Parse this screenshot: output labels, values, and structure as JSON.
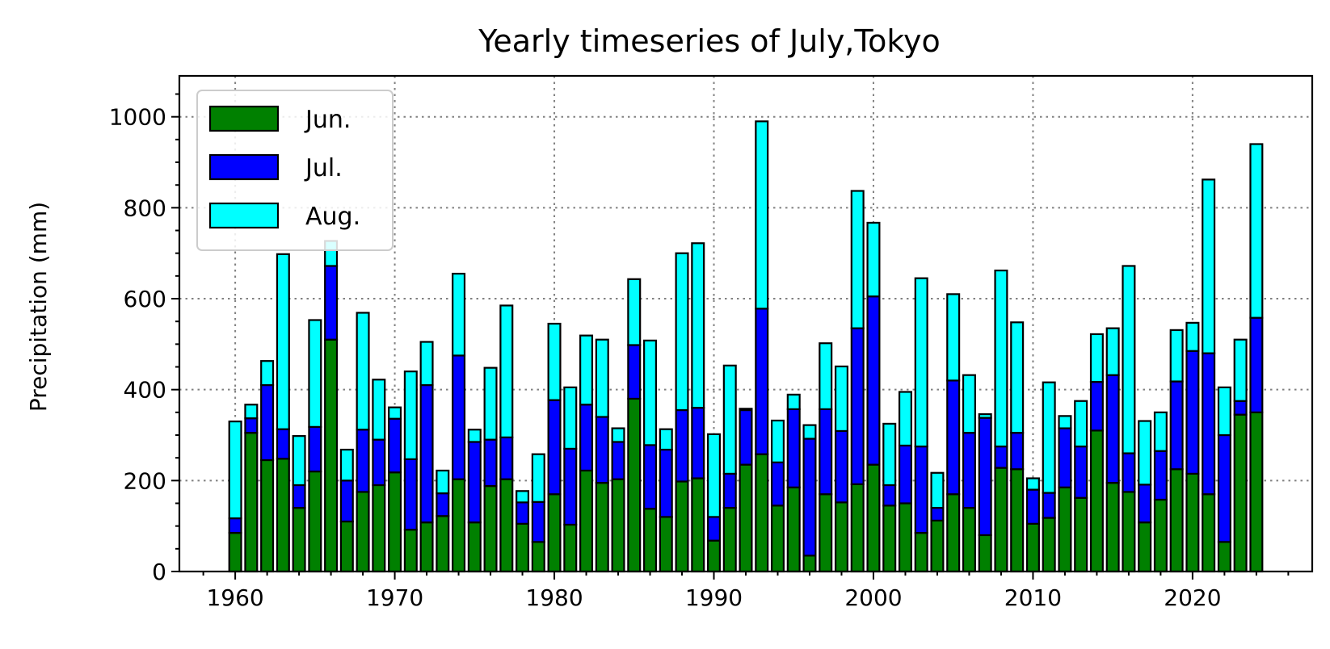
{
  "chart_data": {
    "type": "bar",
    "stacked": true,
    "title": "Yearly timeseries of July,Tokyo",
    "xlabel": "",
    "ylabel": "Precipitation (mm)",
    "xlim": [
      1956.5,
      2027.5
    ],
    "ylim": [
      0,
      1090
    ],
    "xticks": [
      1960,
      1970,
      1980,
      1990,
      2000,
      2010,
      2020
    ],
    "yticks": [
      0,
      200,
      400,
      600,
      800,
      1000
    ],
    "grid": true,
    "legend_position": "top-left",
    "x": [
      1960,
      1961,
      1962,
      1963,
      1964,
      1965,
      1966,
      1967,
      1968,
      1969,
      1970,
      1971,
      1972,
      1973,
      1974,
      1975,
      1976,
      1977,
      1978,
      1979,
      1980,
      1981,
      1982,
      1983,
      1984,
      1985,
      1986,
      1987,
      1988,
      1989,
      1990,
      1991,
      1992,
      1993,
      1994,
      1995,
      1996,
      1997,
      1998,
      1999,
      2000,
      2001,
      2002,
      2003,
      2004,
      2005,
      2006,
      2007,
      2008,
      2009,
      2010,
      2011,
      2012,
      2013,
      2014,
      2015,
      2016,
      2017,
      2018,
      2019,
      2020,
      2021,
      2022,
      2023,
      2024
    ],
    "series": [
      {
        "name": "Jun.",
        "color": "#008000",
        "values": [
          85,
          305,
          245,
          248,
          140,
          220,
          510,
          110,
          175,
          190,
          218,
          92,
          108,
          122,
          203,
          108,
          188,
          203,
          105,
          65,
          170,
          103,
          222,
          195,
          203,
          380,
          138,
          120,
          198,
          205,
          68,
          140,
          235,
          258,
          145,
          185,
          35,
          170,
          152,
          192,
          235,
          145,
          150,
          85,
          112,
          170,
          140,
          80,
          228,
          225,
          105,
          118,
          185,
          162,
          310,
          195,
          175,
          108,
          158,
          225,
          215,
          170,
          65,
          345,
          350
        ]
      },
      {
        "name": "Jul.",
        "color": "#0000ff",
        "values": [
          32,
          32,
          165,
          65,
          50,
          98,
          162,
          90,
          137,
          100,
          118,
          155,
          302,
          50,
          272,
          177,
          102,
          92,
          47,
          88,
          207,
          167,
          145,
          145,
          82,
          118,
          140,
          148,
          157,
          155,
          52,
          75,
          120,
          320,
          95,
          172,
          257,
          187,
          157,
          343,
          370,
          45,
          127,
          190,
          28,
          250,
          165,
          258,
          47,
          80,
          75,
          55,
          130,
          113,
          107,
          237,
          85,
          83,
          107,
          193,
          270,
          310,
          235,
          30,
          208
        ]
      },
      {
        "name": "Aug.",
        "color": "#00ffff",
        "values": [
          213,
          30,
          53,
          385,
          108,
          235,
          55,
          68,
          257,
          132,
          25,
          193,
          95,
          50,
          180,
          27,
          158,
          290,
          25,
          105,
          168,
          135,
          152,
          170,
          30,
          145,
          230,
          45,
          345,
          362,
          182,
          238,
          3,
          412,
          92,
          32,
          30,
          145,
          142,
          302,
          162,
          135,
          118,
          370,
          77,
          190,
          127,
          8,
          387,
          243,
          25,
          243,
          27,
          100,
          105,
          103,
          412,
          140,
          85,
          113,
          62,
          382,
          105,
          135,
          382
        ]
      }
    ]
  }
}
